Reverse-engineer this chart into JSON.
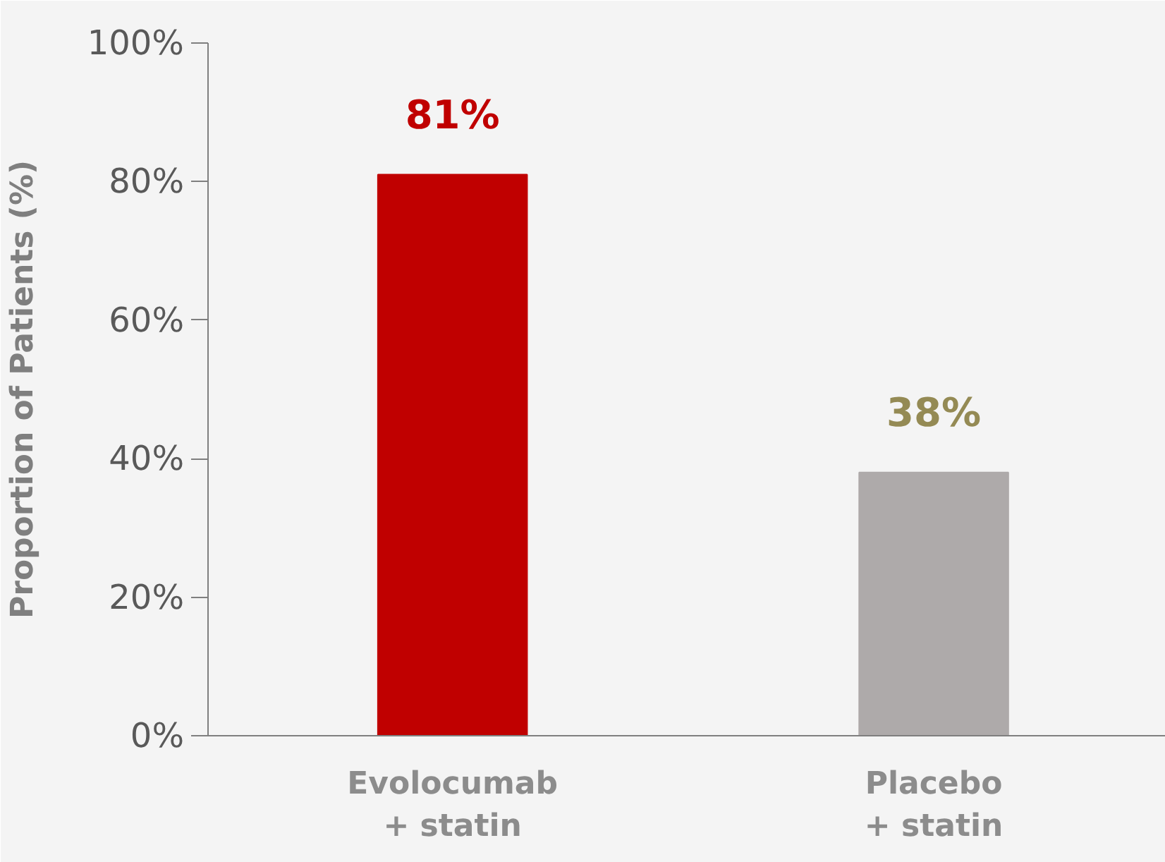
{
  "chart_data": {
    "type": "bar",
    "ylabel": "Proportion of Patients (%)",
    "categories": [
      "Evolocumab\n+ statin",
      "Placebo\n+ statin"
    ],
    "values": [
      81,
      38
    ],
    "colors": [
      "#c00000",
      "#aeaaaa"
    ],
    "value_labels": [
      "81%",
      "38%"
    ],
    "ylim": [
      0,
      100
    ],
    "yticks": [
      {
        "value": 0,
        "label": "0%"
      },
      {
        "value": 20,
        "label": "20%"
      },
      {
        "value": 40,
        "label": "40%"
      },
      {
        "value": 60,
        "label": "60%"
      },
      {
        "value": 80,
        "label": "80%"
      },
      {
        "value": 100,
        "label": "100%"
      }
    ],
    "grid": false
  }
}
